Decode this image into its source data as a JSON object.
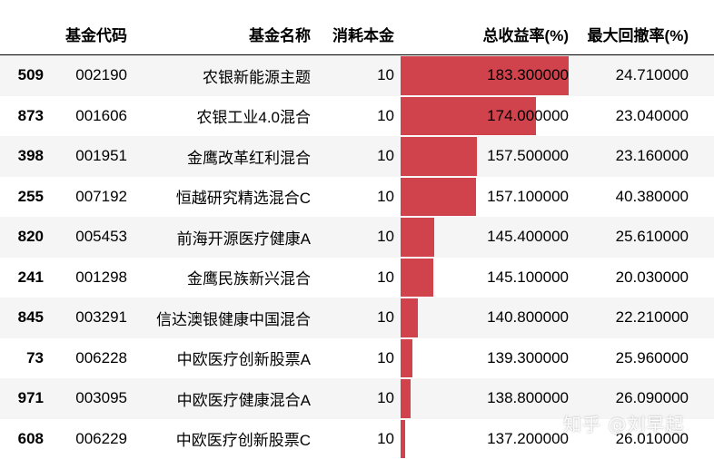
{
  "table": {
    "headers": {
      "idx": "",
      "code": "基金代码",
      "name": "基金名称",
      "cost": "消耗本金",
      "return": "总收益率(%)",
      "drawdown": "最大回撤率(%)"
    },
    "bar_color": "#d0434d",
    "bar_scale_max": 183.3,
    "bar_scale_min": 137.2,
    "rows": [
      {
        "idx": "509",
        "code": "002190",
        "name": "农银新能源主题",
        "cost": "10",
        "return": "183.300000",
        "return_value": 183.3,
        "drawdown": "24.710000"
      },
      {
        "idx": "873",
        "code": "001606",
        "name": "农银工业4.0混合",
        "cost": "10",
        "return": "174.000000",
        "return_value": 174.0,
        "drawdown": "23.040000"
      },
      {
        "idx": "398",
        "code": "001951",
        "name": "金鹰改革红利混合",
        "cost": "10",
        "return": "157.500000",
        "return_value": 157.5,
        "drawdown": "23.160000"
      },
      {
        "idx": "255",
        "code": "007192",
        "name": "恒越研究精选混合C",
        "cost": "10",
        "return": "157.100000",
        "return_value": 157.1,
        "drawdown": "40.380000"
      },
      {
        "idx": "820",
        "code": "005453",
        "name": "前海开源医疗健康A",
        "cost": "10",
        "return": "145.400000",
        "return_value": 145.4,
        "drawdown": "25.610000"
      },
      {
        "idx": "241",
        "code": "001298",
        "name": "金鹰民族新兴混合",
        "cost": "10",
        "return": "145.100000",
        "return_value": 145.1,
        "drawdown": "20.030000"
      },
      {
        "idx": "845",
        "code": "003291",
        "name": "信达澳银健康中国混合",
        "cost": "10",
        "return": "140.800000",
        "return_value": 140.8,
        "drawdown": "22.210000"
      },
      {
        "idx": "73",
        "code": "006228",
        "name": "中欧医疗创新股票A",
        "cost": "10",
        "return": "139.300000",
        "return_value": 139.3,
        "drawdown": "25.960000"
      },
      {
        "idx": "971",
        "code": "003095",
        "name": "中欧医疗健康混合A",
        "cost": "10",
        "return": "138.800000",
        "return_value": 138.8,
        "drawdown": "26.090000"
      },
      {
        "idx": "608",
        "code": "006229",
        "name": "中欧医疗创新股票C",
        "cost": "10",
        "return": "137.200000",
        "return_value": 137.2,
        "drawdown": "26.010000"
      }
    ]
  },
  "watermark": "知乎 @刘早起"
}
